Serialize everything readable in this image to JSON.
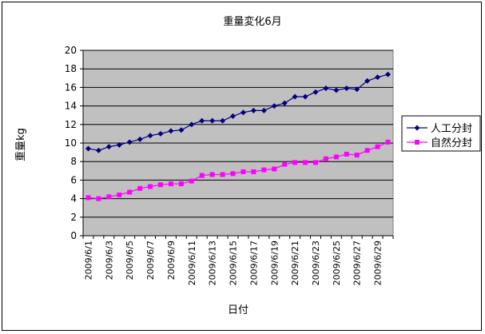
{
  "chart_data": {
    "type": "line",
    "title": "重量変化6月",
    "xlabel": "日付",
    "ylabel": "重量kg",
    "ylim": [
      0,
      20
    ],
    "y_ticks": [
      0,
      2,
      4,
      6,
      8,
      10,
      12,
      14,
      16,
      18,
      20
    ],
    "grid": true,
    "legend_position": "right",
    "plot_background": "#c0c0c0",
    "x": [
      "2009/6/1",
      "2009/6/2",
      "2009/6/3",
      "2009/6/4",
      "2009/6/5",
      "2009/6/6",
      "2009/6/7",
      "2009/6/8",
      "2009/6/9",
      "2009/6/10",
      "2009/6/11",
      "2009/6/12",
      "2009/6/13",
      "2009/6/14",
      "2009/6/15",
      "2009/6/16",
      "2009/6/17",
      "2009/6/18",
      "2009/6/19",
      "2009/6/20",
      "2009/6/21",
      "2009/6/22",
      "2009/6/23",
      "2009/6/24",
      "2009/6/25",
      "2009/6/26",
      "2009/6/27",
      "2009/6/28",
      "2009/6/29",
      "2009/6/30"
    ],
    "x_tick_labels": [
      "2009/6/1",
      "2009/6/3",
      "2009/6/5",
      "2009/6/7",
      "2009/6/9",
      "2009/6/11",
      "2009/6/13",
      "2009/6/15",
      "2009/6/17",
      "2009/6/19",
      "2009/6/21",
      "2009/6/23",
      "2009/6/25",
      "2009/6/27",
      "2009/6/29"
    ],
    "series": [
      {
        "name": "人工分封",
        "color": "#000080",
        "marker": "diamond",
        "values": [
          9.4,
          9.2,
          9.6,
          9.8,
          10.1,
          10.4,
          10.8,
          11.0,
          11.3,
          11.4,
          12.0,
          12.4,
          12.4,
          12.4,
          12.9,
          13.3,
          13.5,
          13.5,
          14.0,
          14.3,
          15.0,
          15.0,
          15.5,
          15.9,
          15.7,
          15.9,
          15.8,
          16.7,
          17.1,
          17.4
        ]
      },
      {
        "name": "自然分封",
        "color": "#ff00ff",
        "marker": "square",
        "values": [
          4.1,
          4.0,
          4.2,
          4.4,
          4.7,
          5.1,
          5.3,
          5.5,
          5.6,
          5.6,
          5.9,
          6.5,
          6.6,
          6.6,
          6.7,
          6.9,
          6.9,
          7.1,
          7.2,
          7.7,
          7.9,
          7.9,
          7.9,
          8.3,
          8.5,
          8.8,
          8.7,
          9.2,
          9.6,
          10.1
        ]
      }
    ]
  }
}
